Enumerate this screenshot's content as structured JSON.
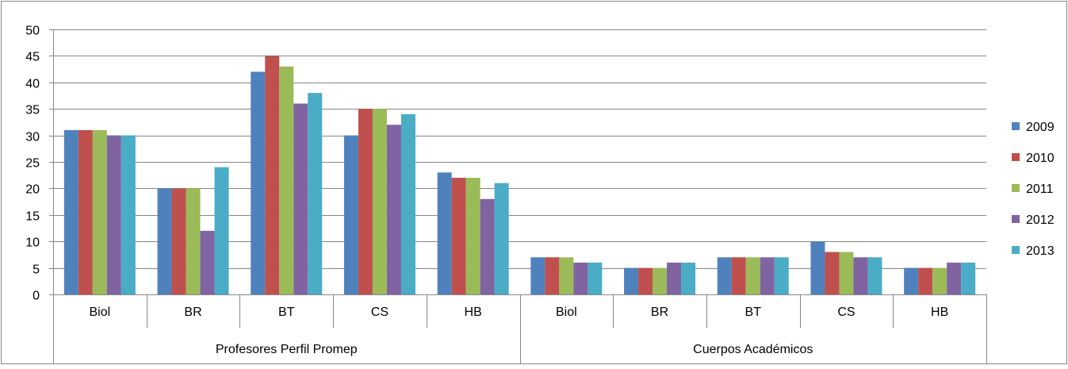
{
  "chart_data": {
    "type": "bar",
    "title": "",
    "xlabel": "",
    "ylabel": "",
    "ylim": [
      0,
      50
    ],
    "yticks": [
      0,
      5,
      10,
      15,
      20,
      25,
      30,
      35,
      40,
      45,
      50
    ],
    "grid": true,
    "legend_position": "right",
    "groups": [
      {
        "label": "Profesores Perfil Promep",
        "categories": [
          "Biol",
          "BR",
          "BT",
          "CS",
          "HB"
        ]
      },
      {
        "label": "Cuerpos Académicos",
        "categories": [
          "Biol",
          "BR",
          "BT",
          "CS",
          "HB"
        ]
      }
    ],
    "series": [
      {
        "name": "2009",
        "color": "#4F81BD",
        "values": [
          31,
          20,
          42,
          30,
          23,
          7,
          5,
          7,
          10,
          5
        ]
      },
      {
        "name": "2010",
        "color": "#C0504D",
        "values": [
          31,
          20,
          45,
          35,
          22,
          7,
          5,
          7,
          8,
          5
        ]
      },
      {
        "name": "2011",
        "color": "#9BBB59",
        "values": [
          31,
          20,
          43,
          35,
          22,
          7,
          5,
          7,
          8,
          5
        ]
      },
      {
        "name": "2012",
        "color": "#8064A2",
        "values": [
          30,
          12,
          36,
          32,
          18,
          6,
          6,
          7,
          7,
          6
        ]
      },
      {
        "name": "2013",
        "color": "#4BACC6",
        "values": [
          30,
          24,
          38,
          34,
          21,
          6,
          6,
          7,
          7,
          6
        ]
      }
    ]
  }
}
